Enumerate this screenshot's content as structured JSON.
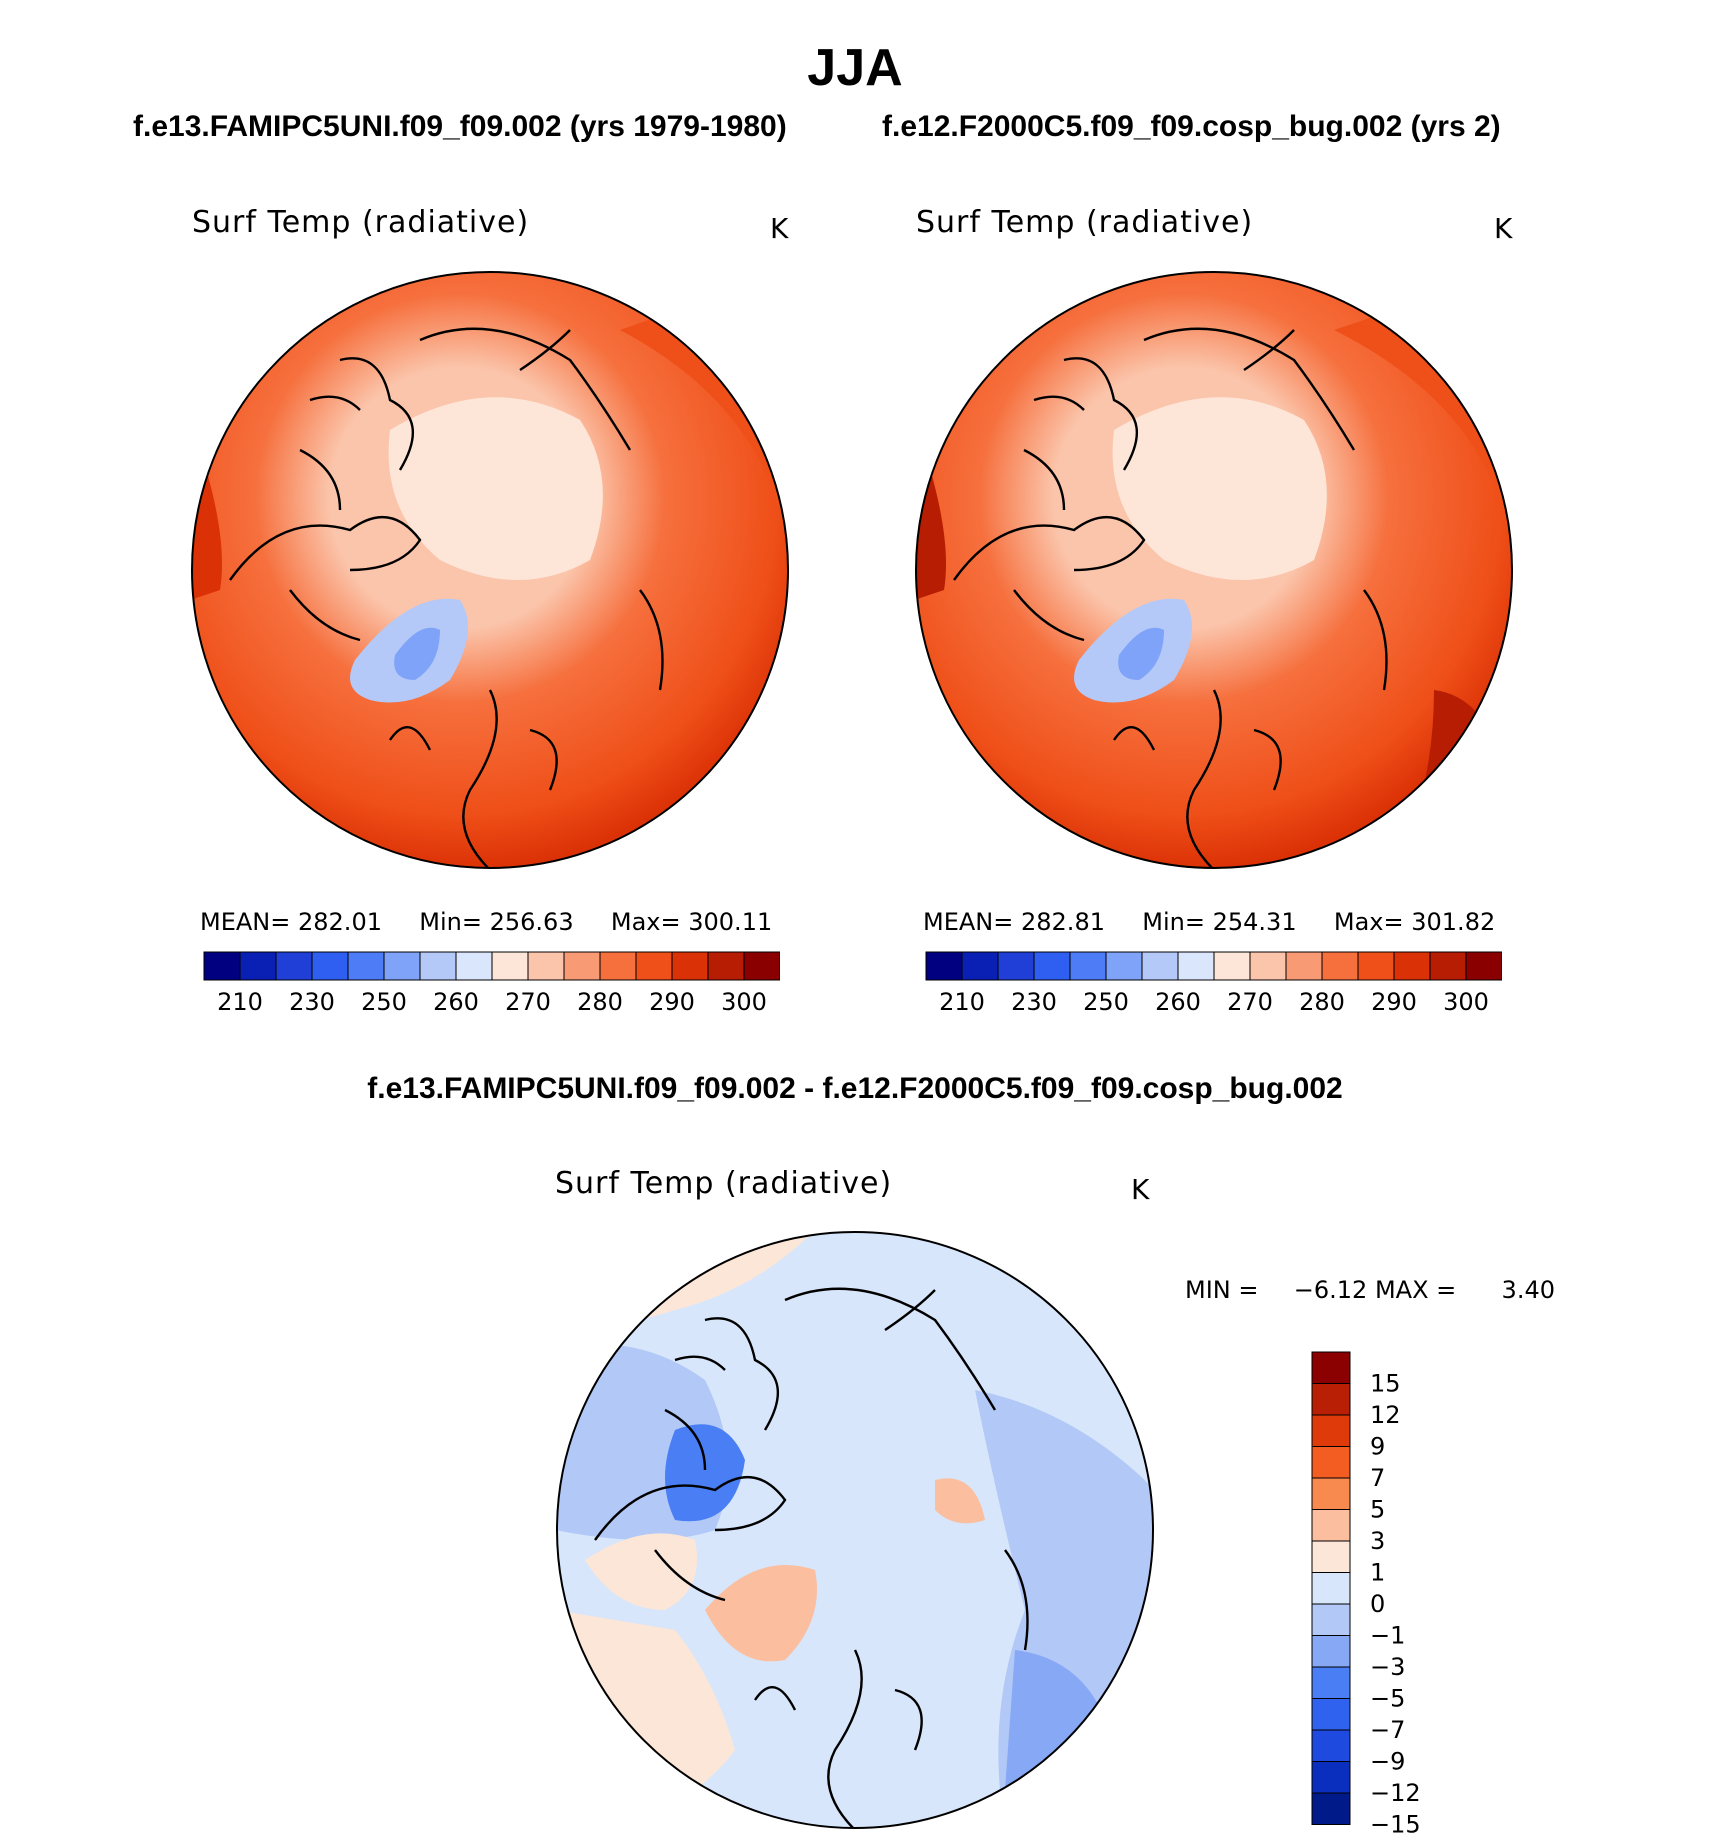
{
  "page": {
    "title": "JJA",
    "subtitle_left": "f.e13.FAMIPC5UNI.f09_f09.002 (yrs 1979-1980)",
    "subtitle_right": "f.e12.F2000C5.f09_f09.cosp_bug.002 (yrs 2)",
    "diff_title": "f.e13.FAMIPC5UNI.f09_f09.002 - f.e12.F2000C5.f09_f09.cosp_bug.002"
  },
  "colors": {
    "abs_scale": [
      "#000080",
      "#0a1fb4",
      "#1f3fd6",
      "#2f5ff0",
      "#4d7cf6",
      "#7fa3f8",
      "#b4c9f8",
      "#d9e6fb",
      "#fde6d8",
      "#fbc5ab",
      "#f89a74",
      "#f6703e",
      "#ef4f18",
      "#db3106",
      "#b71d03",
      "#8a0000"
    ],
    "diff_scale": [
      "#001a8a",
      "#0a2fbf",
      "#1f4ae0",
      "#2f62ee",
      "#4a7ef4",
      "#86a8f5",
      "#b2c8f6",
      "#d7e6fa",
      "#fce6d8",
      "#fbbe9e",
      "#f8894f",
      "#f35d22",
      "#df3b0a",
      "#b81f04",
      "#8b0000"
    ],
    "coast": "#000000"
  },
  "chart_data": [
    {
      "type": "heatmap",
      "projection": "north-polar-stereographic",
      "title": "Surf Temp (radiative)",
      "units": "K",
      "stats": {
        "mean_label": "MEAN=",
        "mean": "282.01",
        "min_label": "Min=",
        "min": "256.63",
        "max_label": "Max=",
        "max": "300.11"
      },
      "levels": [
        210,
        220,
        230,
        240,
        250,
        255,
        260,
        265,
        270,
        275,
        280,
        285,
        290,
        295,
        300
      ],
      "tick_labels": [
        "210",
        "230",
        "250",
        "260",
        "270",
        "280",
        "290",
        "300"
      ],
      "legend_position": "bottom"
    },
    {
      "type": "heatmap",
      "projection": "north-polar-stereographic",
      "title": "Surf Temp (radiative)",
      "units": "K",
      "stats": {
        "mean_label": "MEAN=",
        "mean": "282.81",
        "min_label": "Min=",
        "min": "254.31",
        "max_label": "Max=",
        "max": "301.82"
      },
      "levels": [
        210,
        220,
        230,
        240,
        250,
        255,
        260,
        265,
        270,
        275,
        280,
        285,
        290,
        295,
        300
      ],
      "tick_labels": [
        "210",
        "230",
        "250",
        "260",
        "270",
        "280",
        "290",
        "300"
      ],
      "legend_position": "bottom"
    },
    {
      "type": "heatmap",
      "projection": "north-polar-stereographic",
      "title": "Surf Temp (radiative)",
      "units": "K",
      "stats": {
        "min_label": "MIN =",
        "min": "−6.12",
        "max_label": "MAX =",
        "max": "3.40"
      },
      "levels": [
        -15,
        -12,
        -9,
        -7,
        -5,
        -3,
        -1,
        0,
        1,
        3,
        5,
        7,
        9,
        12,
        15
      ],
      "tick_labels": [
        "15",
        "12",
        "9",
        "7",
        "5",
        "3",
        "1",
        "0",
        "−1",
        "−3",
        "−5",
        "−7",
        "−9",
        "−12",
        "−15"
      ],
      "legend_position": "right"
    }
  ]
}
